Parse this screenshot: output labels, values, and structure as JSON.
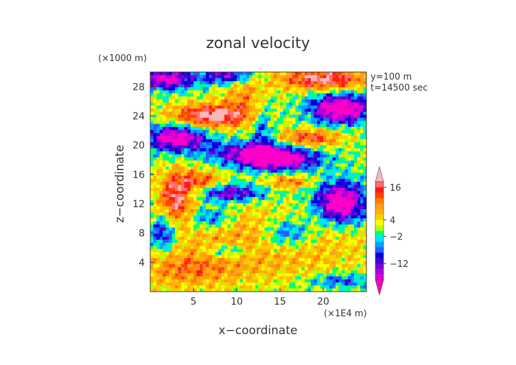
{
  "chart_data": {
    "type": "heatmap",
    "title": "zonal velocity",
    "xlabel": "x−coordinate",
    "ylabel": "z−coordinate",
    "x_unit": "(×1E4 m)",
    "y_unit": "(×1000 m)",
    "annotations": [
      "y=100 m",
      "t=14500 sec"
    ],
    "xlim": [
      0,
      25
    ],
    "ylim": [
      0,
      30
    ],
    "x_ticks": [
      5,
      10,
      15,
      20
    ],
    "y_ticks": [
      4,
      8,
      12,
      16,
      20,
      24,
      28
    ],
    "colorbar": {
      "tick_labels": [
        "16",
        "4",
        "−2",
        "−12"
      ],
      "tick_values": [
        16,
        4,
        -2,
        -12
      ],
      "levels": [
        20,
        18,
        16,
        14,
        12,
        10,
        8,
        6,
        4,
        2,
        0,
        -2,
        -4,
        -6,
        -8,
        -10,
        -12,
        -14,
        -16,
        -18
      ],
      "colors": [
        "#ffb6b6",
        "#ff6e6e",
        "#ff1a1a",
        "#ff4500",
        "#ff7f00",
        "#ff9d1a",
        "#ffb300",
        "#ffd000",
        "#ffff00",
        "#b4ff00",
        "#00ff80",
        "#00e5ff",
        "#00a0ff",
        "#2060ff",
        "#0000e0",
        "#4000d0",
        "#7a00d8",
        "#b000e0",
        "#dd00d0",
        "#ff00c8"
      ]
    },
    "grid": false,
    "legend": "colorbar-right"
  }
}
